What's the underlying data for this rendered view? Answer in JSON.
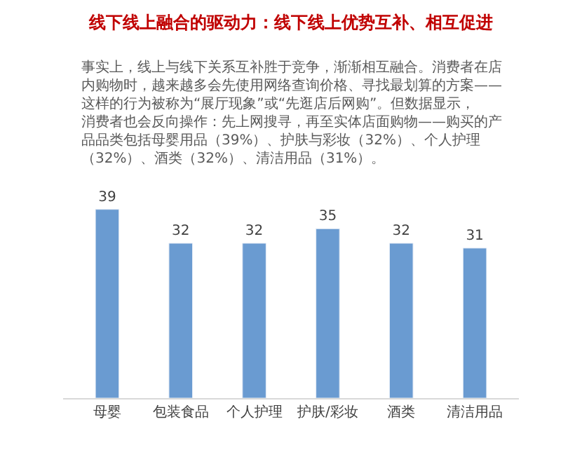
{
  "chart_data": {
    "type": "bar",
    "title": "线下线上融合的驱动力：线下线上优势互补、相互促进",
    "subtitle": "事实上，线上与线下关系互补胜于竞争，渐渐相互融合。消费者在店内购物时，越来越多会先使用网络查询价格、寻找最划算的方案——这样的行为被称为“展厅现象”或“先逛店后网购”。但数据显示，消费者也会反向操作：先上网搜寻，再至实体店面购物——购买的产品品类包括母婴用品（39%）、护肤与彩妆（32%）、个人护理（32%）、酒类（32%）、清洁用品（31%）。",
    "categories": [
      "母婴",
      "包装食品",
      "个人护理",
      "护肤/彩妆",
      "酒类",
      "清洁用品"
    ],
    "values": [
      39,
      32,
      32,
      35,
      32,
      31
    ],
    "color": "#6a9bd1",
    "data_labels": true,
    "legend": false
  }
}
